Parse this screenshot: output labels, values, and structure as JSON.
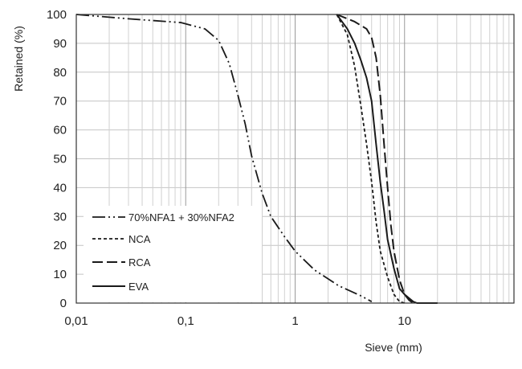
{
  "chart_data": {
    "type": "line",
    "title": "",
    "xlabel": "Sieve (mm)",
    "ylabel": "Retained (%)",
    "xscale": "log",
    "xlim": [
      0.01,
      100
    ],
    "ylim": [
      0,
      100
    ],
    "grid": true,
    "legend_position": "bottom-left",
    "x_tick_labels": [
      "0,01",
      "0,1",
      "1",
      "10"
    ],
    "x_tick_values": [
      0.01,
      0.1,
      1,
      10
    ],
    "y_tick_labels": [
      "0",
      "10",
      "20",
      "30",
      "40",
      "50",
      "60",
      "70",
      "80",
      "90",
      "100"
    ],
    "series": [
      {
        "name": "70%NFA1 + 30%NFA2",
        "style": "dash-dot-dot",
        "color": "#1a1a1a",
        "points": [
          {
            "x": 0.01,
            "y": 100
          },
          {
            "x": 0.03,
            "y": 98.5
          },
          {
            "x": 0.09,
            "y": 97.2
          },
          {
            "x": 0.15,
            "y": 95
          },
          {
            "x": 0.2,
            "y": 91
          },
          {
            "x": 0.25,
            "y": 83
          },
          {
            "x": 0.3,
            "y": 72
          },
          {
            "x": 0.35,
            "y": 62
          },
          {
            "x": 0.4,
            "y": 51
          },
          {
            "x": 0.5,
            "y": 38
          },
          {
            "x": 0.6,
            "y": 30
          },
          {
            "x": 0.8,
            "y": 23
          },
          {
            "x": 1.0,
            "y": 18
          },
          {
            "x": 1.5,
            "y": 11.5
          },
          {
            "x": 2.5,
            "y": 6
          },
          {
            "x": 4.0,
            "y": 2.5
          },
          {
            "x": 5.0,
            "y": 0.5
          }
        ]
      },
      {
        "name": "NCA",
        "style": "short-dash",
        "color": "#1a1a1a",
        "points": [
          {
            "x": 2.4,
            "y": 100
          },
          {
            "x": 3.0,
            "y": 93
          },
          {
            "x": 3.5,
            "y": 82
          },
          {
            "x": 4.0,
            "y": 68
          },
          {
            "x": 4.5,
            "y": 55
          },
          {
            "x": 5.0,
            "y": 42
          },
          {
            "x": 5.5,
            "y": 28
          },
          {
            "x": 6.0,
            "y": 18
          },
          {
            "x": 7.0,
            "y": 9
          },
          {
            "x": 8.0,
            "y": 3
          },
          {
            "x": 9.0,
            "y": 0.5
          },
          {
            "x": 10.0,
            "y": 0
          }
        ]
      },
      {
        "name": "RCA",
        "style": "long-dash",
        "color": "#1a1a1a",
        "points": [
          {
            "x": 2.4,
            "y": 100
          },
          {
            "x": 3.5,
            "y": 97.5
          },
          {
            "x": 4.5,
            "y": 95
          },
          {
            "x": 5.0,
            "y": 92
          },
          {
            "x": 5.5,
            "y": 85
          },
          {
            "x": 6.0,
            "y": 72
          },
          {
            "x": 6.5,
            "y": 55
          },
          {
            "x": 7.0,
            "y": 40
          },
          {
            "x": 7.5,
            "y": 27
          },
          {
            "x": 8.0,
            "y": 18
          },
          {
            "x": 9.0,
            "y": 8
          },
          {
            "x": 10.0,
            "y": 3
          },
          {
            "x": 11.0,
            "y": 1
          },
          {
            "x": 12.0,
            "y": 0
          }
        ]
      },
      {
        "name": "EVA",
        "style": "solid",
        "color": "#1a1a1a",
        "points": [
          {
            "x": 2.4,
            "y": 100
          },
          {
            "x": 3.0,
            "y": 95
          },
          {
            "x": 3.5,
            "y": 90
          },
          {
            "x": 4.0,
            "y": 84
          },
          {
            "x": 4.5,
            "y": 78
          },
          {
            "x": 5.0,
            "y": 70
          },
          {
            "x": 5.5,
            "y": 55
          },
          {
            "x": 6.0,
            "y": 42
          },
          {
            "x": 6.5,
            "y": 32
          },
          {
            "x": 7.0,
            "y": 22
          },
          {
            "x": 8.0,
            "y": 12
          },
          {
            "x": 9.0,
            "y": 5
          },
          {
            "x": 10.0,
            "y": 3
          },
          {
            "x": 12.0,
            "y": 0.5
          },
          {
            "x": 13.0,
            "y": 0
          },
          {
            "x": 20.0,
            "y": 0
          }
        ]
      }
    ]
  }
}
